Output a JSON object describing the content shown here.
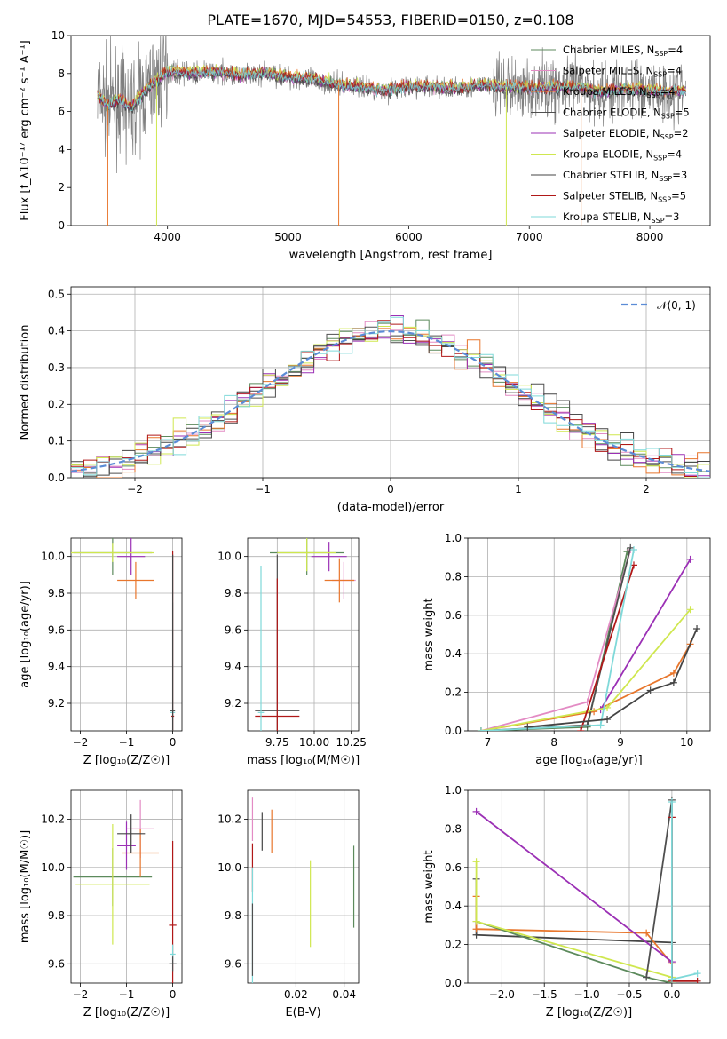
{
  "figure": {
    "title": "PLATE=1670, MJD=54553, FIBERID=0150, z=0.108"
  },
  "models": [
    {
      "name": "Chabrier MILES",
      "nssp": "4",
      "color": "#5c8a5c"
    },
    {
      "name": "Salpeter MILES",
      "nssp": "4",
      "color": "#e38bc4"
    },
    {
      "name": "Kroupa MILES",
      "nssp": "4",
      "color": "#e8762c"
    },
    {
      "name": "Chabrier ELODIE",
      "nssp": "5",
      "color": "#4f4f4f"
    },
    {
      "name": "Salpeter ELODIE",
      "nssp": "2",
      "color": "#9b30b5"
    },
    {
      "name": "Kroupa ELODIE",
      "nssp": "4",
      "color": "#cfe74f"
    },
    {
      "name": "Chabrier STELIB",
      "nssp": "3",
      "color": "#444444"
    },
    {
      "name": "Salpeter STELIB",
      "nssp": "5",
      "color": "#b01818"
    },
    {
      "name": "Kroupa STELIB",
      "nssp": "3",
      "color": "#7fd9d9"
    }
  ],
  "chart_data": [
    {
      "id": "spectrum",
      "type": "line",
      "xlabel": "wavelength [Angstrom, rest frame]",
      "ylabel": "Flux [f_λ10⁻¹⁷ erg cm⁻² s⁻¹ A⁻¹]",
      "xlim": [
        3200,
        8500
      ],
      "ylim": [
        0,
        10
      ],
      "xticks": [
        "4000",
        "5000",
        "6000",
        "7000",
        "8000"
      ],
      "yticks": [
        "0",
        "2",
        "4",
        "6",
        "8",
        "10"
      ],
      "legend": "top-right",
      "spectrum_x": [
        3420,
        3500,
        3600,
        3700,
        3800,
        3900,
        4000,
        4200,
        4400,
        4600,
        4800,
        5000,
        5200,
        5400,
        5600,
        5800,
        6000,
        6200,
        6400,
        6600,
        6800,
        7000,
        7200,
        7400,
        7600,
        7800,
        8000,
        8200,
        8300
      ],
      "spectrum_y": [
        6.9,
        6.3,
        6.6,
        6.2,
        7.0,
        7.6,
        8.1,
        8.0,
        8.1,
        7.9,
        8.0,
        7.8,
        7.7,
        7.4,
        7.3,
        7.1,
        7.3,
        7.3,
        7.2,
        7.4,
        7.3,
        7.2,
        7.3,
        7.3,
        7.0,
        7.2,
        7.1,
        7.0,
        7.1
      ],
      "model_offsets": [
        0.05,
        -0.05,
        0.1,
        -0.1,
        0.0,
        0.12,
        -0.08,
        0.06,
        0.0
      ]
    },
    {
      "id": "residuals",
      "type": "step",
      "xlabel": "(data-model)/error",
      "ylabel": "Normed distribution",
      "xlim": [
        -2.5,
        2.5
      ],
      "ylim": [
        0,
        0.52
      ],
      "xticks": [
        "−2",
        "−1",
        "0",
        "1",
        "2"
      ],
      "yticks": [
        "0.0",
        "0.1",
        "0.2",
        "0.3",
        "0.4",
        "0.5"
      ],
      "legend_label": "𝒩(0, 1)",
      "legend": "top-right",
      "bin_width": 0.1
    },
    {
      "id": "age-vs-Z",
      "type": "errorbar",
      "xlabel": "Z [log₁₀(Z/Z☉)]",
      "ylabel": "age  [log₁₀(age/yr)]",
      "xlim": [
        -2.2,
        0.2
      ],
      "ylim": [
        9.05,
        10.1
      ],
      "xticks": [
        "−2",
        "−1",
        "0"
      ],
      "yticks": [
        "9.2",
        "9.4",
        "9.6",
        "9.8",
        "10.0"
      ],
      "points": [
        {
          "m": 0,
          "x": -1.3,
          "y": 10.02,
          "xe": 0.85,
          "ye": 0.12
        },
        {
          "m": 4,
          "x": -0.9,
          "y": 10.0,
          "xe": 0.3,
          "ye": 0.1
        },
        {
          "m": 5,
          "x": -1.3,
          "y": 10.02,
          "xe": 0.9,
          "ye": 0.05
        },
        {
          "m": 2,
          "x": -0.8,
          "y": 9.87,
          "xe": 0.4,
          "ye": 0.1
        },
        {
          "m": 8,
          "x": 0.0,
          "y": 9.15,
          "xe": 0.05,
          "ye": 0.6
        },
        {
          "m": 7,
          "x": 0.0,
          "y": 9.13,
          "xe": 0.03,
          "ye": 0.9
        },
        {
          "m": 6,
          "x": 0.0,
          "y": 9.16,
          "xe": 0.05,
          "ye": 0.85
        }
      ]
    },
    {
      "id": "age-vs-mass",
      "type": "errorbar",
      "xlabel": "mass [log₁₀(M/M☉)]",
      "ylabel": "",
      "xlim": [
        9.55,
        10.3
      ],
      "ylim": [
        9.05,
        10.1
      ],
      "xticks": [
        "9.75",
        "10.00",
        "10.25"
      ],
      "yticks": [
        "9.2",
        "9.4",
        "9.6",
        "9.8",
        "10.0"
      ],
      "points": [
        {
          "m": 0,
          "x": 9.95,
          "y": 10.02,
          "xe": 0.25,
          "ye": 0.12
        },
        {
          "m": 1,
          "x": 10.2,
          "y": 9.87,
          "xe": 0.08,
          "ye": 0.1
        },
        {
          "m": 2,
          "x": 10.17,
          "y": 9.87,
          "xe": 0.1,
          "ye": 0.12
        },
        {
          "m": 4,
          "x": 10.1,
          "y": 10.0,
          "xe": 0.12,
          "ye": 0.08
        },
        {
          "m": 5,
          "x": 9.95,
          "y": 10.02,
          "xe": 0.2,
          "ye": 0.1
        },
        {
          "m": 3,
          "x": 9.75,
          "y": 9.16,
          "xe": 0.15,
          "ye": 0.85
        },
        {
          "m": 7,
          "x": 9.75,
          "y": 9.13,
          "xe": 0.15,
          "ye": 0.75
        },
        {
          "m": 8,
          "x": 9.64,
          "y": 9.15,
          "xe": 0.02,
          "ye": 0.8
        }
      ]
    },
    {
      "id": "mass-weight-vs-age",
      "type": "line",
      "xlabel": "age  [log₁₀(age/yr)]",
      "ylabel": "mass weight",
      "xlim": [
        6.7,
        10.35
      ],
      "ylim": [
        0,
        1.0
      ],
      "xticks": [
        "7",
        "8",
        "9",
        "10"
      ],
      "yticks": [
        "0.0",
        "0.2",
        "0.4",
        "0.6",
        "0.8",
        "1.0"
      ],
      "series": [
        {
          "m": 0,
          "x": [
            6.9,
            8.5,
            9.1
          ],
          "y": [
            0.0,
            0.02,
            0.93
          ]
        },
        {
          "m": 1,
          "x": [
            6.9,
            8.5,
            9.15
          ],
          "y": [
            0.0,
            0.15,
            0.94
          ]
        },
        {
          "m": 2,
          "x": [
            6.9,
            8.6,
            9.8,
            10.05
          ],
          "y": [
            0.0,
            0.1,
            0.3,
            0.45
          ]
        },
        {
          "m": 3,
          "x": [
            6.9,
            8.5,
            9.15
          ],
          "y": [
            0.0,
            0.03,
            0.95
          ]
        },
        {
          "m": 4,
          "x": [
            8.7,
            10.05
          ],
          "y": [
            0.11,
            0.89
          ]
        },
        {
          "m": 5,
          "x": [
            6.9,
            8.8,
            10.05
          ],
          "y": [
            0.0,
            0.12,
            0.63
          ]
        },
        {
          "m": 7,
          "x": [
            8.4,
            9.2
          ],
          "y": [
            0.0,
            0.86
          ]
        },
        {
          "m": 8,
          "x": [
            6.9,
            8.7,
            9.2
          ],
          "y": [
            0.0,
            0.03,
            0.94
          ]
        },
        {
          "m": 6,
          "x": [
            7.6,
            8.8,
            9.45,
            9.8,
            10.15
          ],
          "y": [
            0.02,
            0.06,
            0.21,
            0.25,
            0.53
          ]
        }
      ]
    },
    {
      "id": "mass-vs-Z",
      "type": "errorbar",
      "xlabel": "Z [log₁₀(Z/Z☉)]",
      "ylabel": "mass [log₁₀(M/M☉)]",
      "xlim": [
        -2.2,
        0.2
      ],
      "ylim": [
        9.52,
        10.32
      ],
      "xticks": [
        "−2",
        "−1",
        "0"
      ],
      "yticks": [
        "9.6",
        "9.8",
        "10.0",
        "10.2"
      ],
      "points": [
        {
          "m": 0,
          "x": -1.3,
          "y": 9.96,
          "xe": 0.85,
          "ye": 0.12
        },
        {
          "m": 1,
          "x": -0.7,
          "y": 10.16,
          "xe": 0.3,
          "ye": 0.12
        },
        {
          "m": 2,
          "x": -0.7,
          "y": 10.06,
          "xe": 0.4,
          "ye": 0.1
        },
        {
          "m": 4,
          "x": -1.0,
          "y": 10.09,
          "xe": 0.2,
          "ye": 0.1
        },
        {
          "m": 5,
          "x": -1.3,
          "y": 9.93,
          "xe": 0.8,
          "ye": 0.25
        },
        {
          "m": 6,
          "x": -0.9,
          "y": 10.14,
          "xe": 0.3,
          "ye": 0.08
        },
        {
          "m": 7,
          "x": 0.0,
          "y": 9.76,
          "xe": 0.08,
          "ye": 0.35
        },
        {
          "m": 8,
          "x": 0.0,
          "y": 9.64,
          "xe": 0.06,
          "ye": 0.04
        },
        {
          "m": 3,
          "x": 0.0,
          "y": 9.6,
          "xe": 0.08,
          "ye": 0.03
        }
      ]
    },
    {
      "id": "mass-vs-EBV",
      "type": "errorbar",
      "xlabel": "E(B-V)",
      "ylabel": "",
      "xlim": [
        0.0,
        0.046
      ],
      "ylim": [
        9.52,
        10.32
      ],
      "xticks": [
        "0.02",
        "0.04"
      ],
      "yticks": [
        "9.6",
        "9.8",
        "10.0",
        "10.2"
      ],
      "points": [
        {
          "m": 1,
          "x": 0.002,
          "y": 10.2,
          "xe": 0.0,
          "ye": 0.09
        },
        {
          "m": 2,
          "x": 0.01,
          "y": 10.15,
          "xe": 0.0,
          "ye": 0.09
        },
        {
          "m": 6,
          "x": 0.006,
          "y": 10.15,
          "xe": 0.0,
          "ye": 0.08
        },
        {
          "m": 7,
          "x": 0.002,
          "y": 10.0,
          "xe": 0.0,
          "ye": 0.1
        },
        {
          "m": 5,
          "x": 0.026,
          "y": 9.85,
          "xe": 0.0,
          "ye": 0.18
        },
        {
          "m": 0,
          "x": 0.044,
          "y": 9.92,
          "xe": 0.0,
          "ye": 0.17
        },
        {
          "m": 8,
          "x": 0.002,
          "y": 9.75,
          "xe": 0.0,
          "ye": 0.25
        },
        {
          "m": 3,
          "x": 0.002,
          "y": 9.7,
          "xe": 0.0,
          "ye": 0.15
        }
      ]
    },
    {
      "id": "mass-weight-vs-Z",
      "type": "line",
      "xlabel": "Z [log₁₀(Z/Z☉)]",
      "ylabel": "mass weight",
      "xlim": [
        -2.4,
        0.45
      ],
      "ylim": [
        0,
        1.0
      ],
      "xticks": [
        "−2.0",
        "−1.5",
        "−1.0",
        "−0.5",
        "0.0"
      ],
      "yticks": [
        "0.0",
        "0.2",
        "0.4",
        "0.6",
        "0.8",
        "1.0"
      ],
      "series": [
        {
          "m": 6,
          "x": [
            -2.3,
            -2.3,
            0.0,
            0.0
          ],
          "y": [
            0.54,
            0.25,
            0.21,
            0.02
          ]
        },
        {
          "m": 2,
          "x": [
            -2.3,
            -2.3,
            -0.3,
            0.0
          ],
          "y": [
            0.45,
            0.28,
            0.26,
            0.1
          ]
        },
        {
          "m": 0,
          "x": [
            -2.3,
            -0.3,
            0.0
          ],
          "y": [
            0.32,
            0.03,
            0.0
          ]
        },
        {
          "m": 5,
          "x": [
            -2.3,
            -2.3,
            0.0
          ],
          "y": [
            0.63,
            0.32,
            0.03
          ]
        },
        {
          "m": 4,
          "x": [
            -2.3,
            0.0
          ],
          "y": [
            0.89,
            0.11
          ]
        },
        {
          "m": 3,
          "x": [
            -0.3,
            0.0,
            0.0
          ],
          "y": [
            0.03,
            0.95,
            0.02
          ]
        },
        {
          "m": 7,
          "x": [
            0.0,
            0.0,
            0.3
          ],
          "y": [
            0.86,
            0.01,
            0.01
          ]
        },
        {
          "m": 8,
          "x": [
            0.0,
            0.0,
            0.3
          ],
          "y": [
            0.94,
            0.02,
            0.05
          ]
        }
      ]
    }
  ]
}
